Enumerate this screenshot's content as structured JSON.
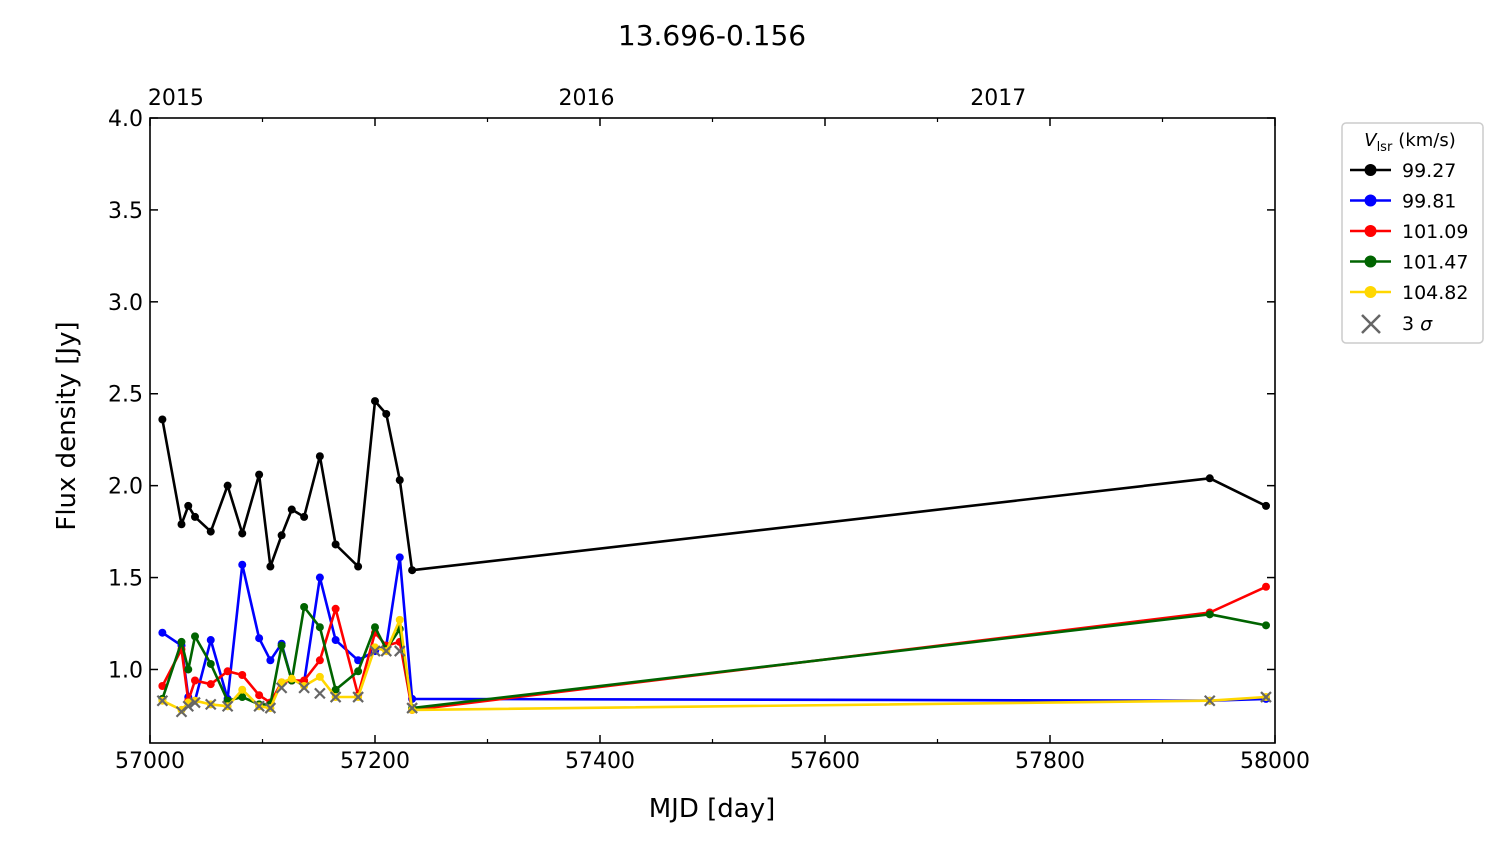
{
  "chart_data": {
    "type": "line",
    "title": "13.696-0.156",
    "xlabel": "MJD [day]",
    "ylabel": "Flux density [Jy]",
    "xlim": [
      57000,
      58000
    ],
    "ylim": [
      0.6,
      4.0
    ],
    "x_ticks": [
      57000,
      57200,
      57400,
      57600,
      57800,
      58000
    ],
    "x_tick_labels": [
      "57000",
      "57200",
      "57400",
      "57600",
      "57800",
      "58000"
    ],
    "y_ticks": [
      1.0,
      1.5,
      2.0,
      2.5,
      3.0,
      3.5,
      4.0
    ],
    "y_tick_labels": [
      "1.0",
      "1.5",
      "2.0",
      "2.5",
      "3.0",
      "3.5",
      "4.0"
    ],
    "top_axis": {
      "ticks": [
        57023,
        57388,
        57754
      ],
      "labels": [
        "2015",
        "2016",
        "2017"
      ]
    },
    "grid": false,
    "legend": {
      "title_main": "V",
      "title_sub": "lsr",
      "title_unit": "(km/s)",
      "placement": "outside-right-top",
      "sigma_label_prefix": "3",
      "sigma_label_symbol": "σ"
    },
    "x": [
      57011,
      57028,
      57034,
      57040,
      57054,
      57069,
      57082,
      57097,
      57107,
      57117,
      57126,
      57137,
      57151,
      57165,
      57185,
      57200,
      57210,
      57222,
      57233,
      57942,
      57992
    ],
    "series": [
      {
        "name": "99.27",
        "color": "#000000",
        "values": [
          2.36,
          1.79,
          1.89,
          1.83,
          1.75,
          2.0,
          1.74,
          2.06,
          1.56,
          1.73,
          1.87,
          1.83,
          2.16,
          1.68,
          1.56,
          2.46,
          2.39,
          2.03,
          1.54,
          2.04,
          1.89
        ]
      },
      {
        "name": "99.81",
        "color": "#0000ff",
        "values": [
          1.2,
          1.13,
          0.85,
          0.83,
          1.16,
          0.84,
          1.57,
          1.17,
          1.05,
          1.14,
          0.94,
          0.93,
          1.5,
          1.16,
          1.05,
          1.1,
          1.13,
          1.61,
          0.84,
          0.83,
          0.84
        ]
      },
      {
        "name": "101.09",
        "color": "#ff0000",
        "values": [
          0.91,
          1.11,
          0.83,
          0.94,
          0.92,
          0.99,
          0.97,
          0.86,
          0.82,
          0.93,
          0.94,
          0.94,
          1.05,
          1.33,
          0.86,
          1.2,
          1.13,
          1.15,
          0.78,
          1.31,
          1.45
        ]
      },
      {
        "name": "101.47",
        "color": "#006400",
        "values": [
          0.84,
          1.15,
          1.0,
          1.18,
          1.03,
          0.83,
          0.85,
          0.81,
          0.81,
          1.13,
          0.94,
          1.34,
          1.23,
          0.89,
          0.99,
          1.23,
          1.11,
          1.22,
          0.79,
          1.3,
          1.24
        ]
      },
      {
        "name": "104.82",
        "color": "#ffd700",
        "values": [
          0.83,
          0.78,
          0.82,
          0.83,
          0.81,
          0.8,
          0.89,
          0.8,
          0.79,
          0.93,
          0.95,
          0.91,
          0.96,
          0.85,
          0.85,
          1.12,
          1.1,
          1.27,
          0.78,
          0.83,
          0.85
        ]
      }
    ],
    "sigma3": {
      "name": "3 σ",
      "color": "#666666",
      "points": [
        {
          "x": 57011,
          "y": 0.83
        },
        {
          "x": 57028,
          "y": 0.77
        },
        {
          "x": 57034,
          "y": 0.8
        },
        {
          "x": 57040,
          "y": 0.82
        },
        {
          "x": 57054,
          "y": 0.81
        },
        {
          "x": 57069,
          "y": 0.8
        },
        {
          "x": 57097,
          "y": 0.8
        },
        {
          "x": 57107,
          "y": 0.79
        },
        {
          "x": 57117,
          "y": 0.9
        },
        {
          "x": 57137,
          "y": 0.9
        },
        {
          "x": 57151,
          "y": 0.87
        },
        {
          "x": 57165,
          "y": 0.85
        },
        {
          "x": 57185,
          "y": 0.85
        },
        {
          "x": 57200,
          "y": 1.1
        },
        {
          "x": 57210,
          "y": 1.1
        },
        {
          "x": 57222,
          "y": 1.1
        },
        {
          "x": 57233,
          "y": 0.79
        },
        {
          "x": 57942,
          "y": 0.83
        },
        {
          "x": 57992,
          "y": 0.85
        }
      ]
    }
  }
}
